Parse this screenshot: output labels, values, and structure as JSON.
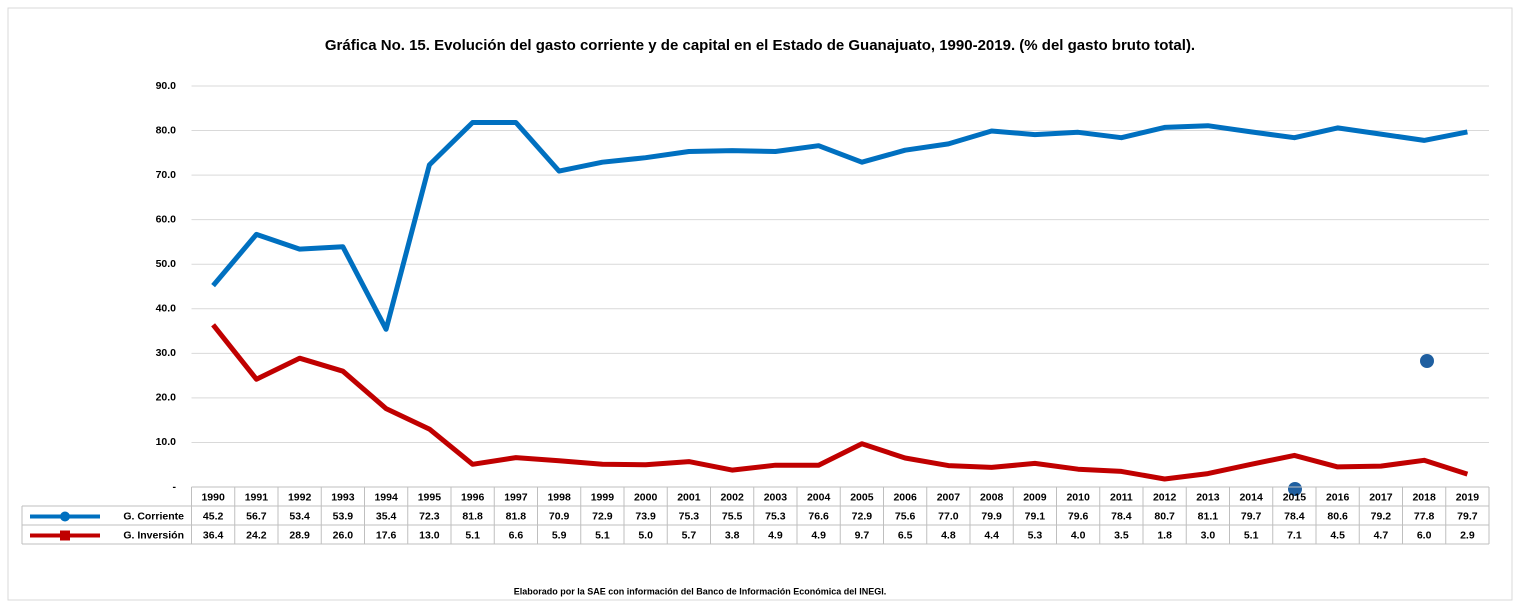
{
  "chart_data": {
    "type": "line",
    "title": "Gráfica No. 15. Evolución del gasto corriente y de capital en el Estado de Guanajuato, 1990-2019. (% del gasto bruto total).",
    "categories": [
      "1990",
      "1991",
      "1992",
      "1993",
      "1994",
      "1995",
      "1996",
      "1997",
      "1998",
      "1999",
      "2000",
      "2001",
      "2002",
      "2003",
      "2004",
      "2005",
      "2006",
      "2007",
      "2008",
      "2009",
      "2010",
      "2011",
      "2012",
      "2013",
      "2014",
      "2015",
      "2016",
      "2017",
      "2018",
      "2019"
    ],
    "series": [
      {
        "name": "G. Corriente",
        "color": "#0070c0",
        "marker": "circle",
        "values": [
          45.2,
          56.7,
          53.4,
          53.9,
          35.4,
          72.3,
          81.8,
          81.8,
          70.9,
          72.9,
          73.9,
          75.3,
          75.5,
          75.3,
          76.6,
          72.9,
          75.6,
          77.0,
          79.9,
          79.1,
          79.6,
          78.4,
          80.7,
          81.1,
          79.7,
          78.4,
          80.6,
          79.2,
          77.8,
          79.7
        ],
        "value_labels": [
          "45.2",
          "56.7",
          "53.4",
          "53.9",
          "35.4",
          "72.3",
          "81.8",
          "81.8",
          "70.9",
          "72.9",
          "73.9",
          "75.3",
          "75.5",
          "75.3",
          "76.6",
          "72.9",
          "75.6",
          "77.0",
          "79.9",
          "79.1",
          "79.6",
          "78.4",
          "80.7",
          "81.1",
          "79.7",
          "78.4",
          "80.6",
          "79.2",
          "77.8",
          "79.7"
        ]
      },
      {
        "name": "G. Inversión",
        "color": "#c00000",
        "marker": "square",
        "values": [
          36.4,
          24.2,
          28.9,
          26.0,
          17.6,
          13.0,
          5.1,
          6.6,
          5.9,
          5.1,
          5.0,
          5.7,
          3.8,
          4.9,
          4.9,
          9.7,
          6.5,
          4.8,
          4.4,
          5.3,
          4.0,
          3.5,
          1.8,
          3.0,
          5.1,
          7.1,
          4.5,
          4.7,
          6.0,
          2.9
        ],
        "value_labels": [
          "36.4",
          "24.2",
          "28.9",
          "26.0",
          "17.6",
          "13.0",
          "5.1",
          "6.6",
          "5.9",
          "5.1",
          "5.0",
          "5.7",
          "3.8",
          "4.9",
          "4.9",
          "9.7",
          "6.5",
          "4.8",
          "4.4",
          "5.3",
          "4.0",
          "3.5",
          "1.8",
          "3.0",
          "5.1",
          "7.1",
          "4.5",
          "4.7",
          "6.0",
          "2.9"
        ]
      }
    ],
    "ylim": [
      0,
      90
    ],
    "yticks": [
      {
        "value": 0,
        "label": "-"
      },
      {
        "value": 10,
        "label": "10.0"
      },
      {
        "value": 20,
        "label": "20.0"
      },
      {
        "value": 30,
        "label": "30.0"
      },
      {
        "value": 40,
        "label": "40.0"
      },
      {
        "value": 50,
        "label": "50.0"
      },
      {
        "value": 60,
        "label": "60.0"
      },
      {
        "value": 70,
        "label": "70.0"
      },
      {
        "value": 80,
        "label": "80.0"
      },
      {
        "value": 90,
        "label": "90.0"
      }
    ],
    "grid": true,
    "note": "Elaborado por la SAE con información del Banco de Información Económica del INEGI."
  }
}
